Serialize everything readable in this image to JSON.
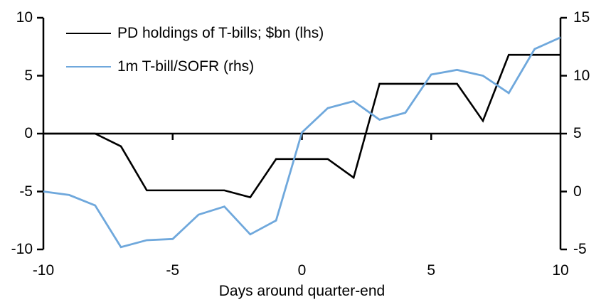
{
  "chart_data": {
    "type": "line",
    "x": [
      -10,
      -9,
      -8,
      -7,
      -6,
      -5,
      -4,
      -3,
      -2,
      -1,
      0,
      1,
      2,
      3,
      4,
      5,
      6,
      7,
      8,
      9,
      10
    ],
    "series": [
      {
        "id": "pd-holdings",
        "name": "PD holdings of T-bills; $bn (lhs)",
        "axis": "left",
        "color": "#000000",
        "values": [
          0,
          0,
          0,
          -1.1,
          -4.9,
          -4.9,
          -4.9,
          -4.9,
          -5.5,
          -2.2,
          -2.2,
          -2.2,
          -3.8,
          4.3,
          4.3,
          4.3,
          4.3,
          1.1,
          6.8,
          6.8,
          6.8
        ]
      },
      {
        "id": "tbill-sofr",
        "name": "1m T-bill/SOFR (rhs)",
        "axis": "right",
        "color": "#6fa8dc",
        "values": [
          0.0,
          -0.3,
          -1.2,
          -4.8,
          -4.2,
          -4.1,
          -2.0,
          -1.3,
          -3.7,
          -2.5,
          5.1,
          7.2,
          7.8,
          6.2,
          6.8,
          10.1,
          10.5,
          10.0,
          8.5,
          12.3,
          13.3
        ]
      }
    ],
    "title": "",
    "xlabel": "Days around quarter-end",
    "ylabel": "",
    "x_axis": {
      "range": [
        -10,
        10
      ],
      "ticks": [
        -10,
        -5,
        0,
        5,
        10
      ],
      "tick_marks_on_axis": [
        -5,
        0,
        5
      ]
    },
    "left_axis": {
      "range": [
        -10,
        10
      ],
      "ticks": [
        10,
        5,
        0,
        -5,
        -10
      ]
    },
    "right_axis": {
      "range": [
        -5,
        15
      ],
      "ticks": [
        15,
        10,
        5,
        0,
        -5
      ]
    },
    "grid": false,
    "legend_position": "top-left",
    "colors": {
      "background": "#ffffff",
      "axis": "#000000",
      "text": "#000000"
    }
  }
}
